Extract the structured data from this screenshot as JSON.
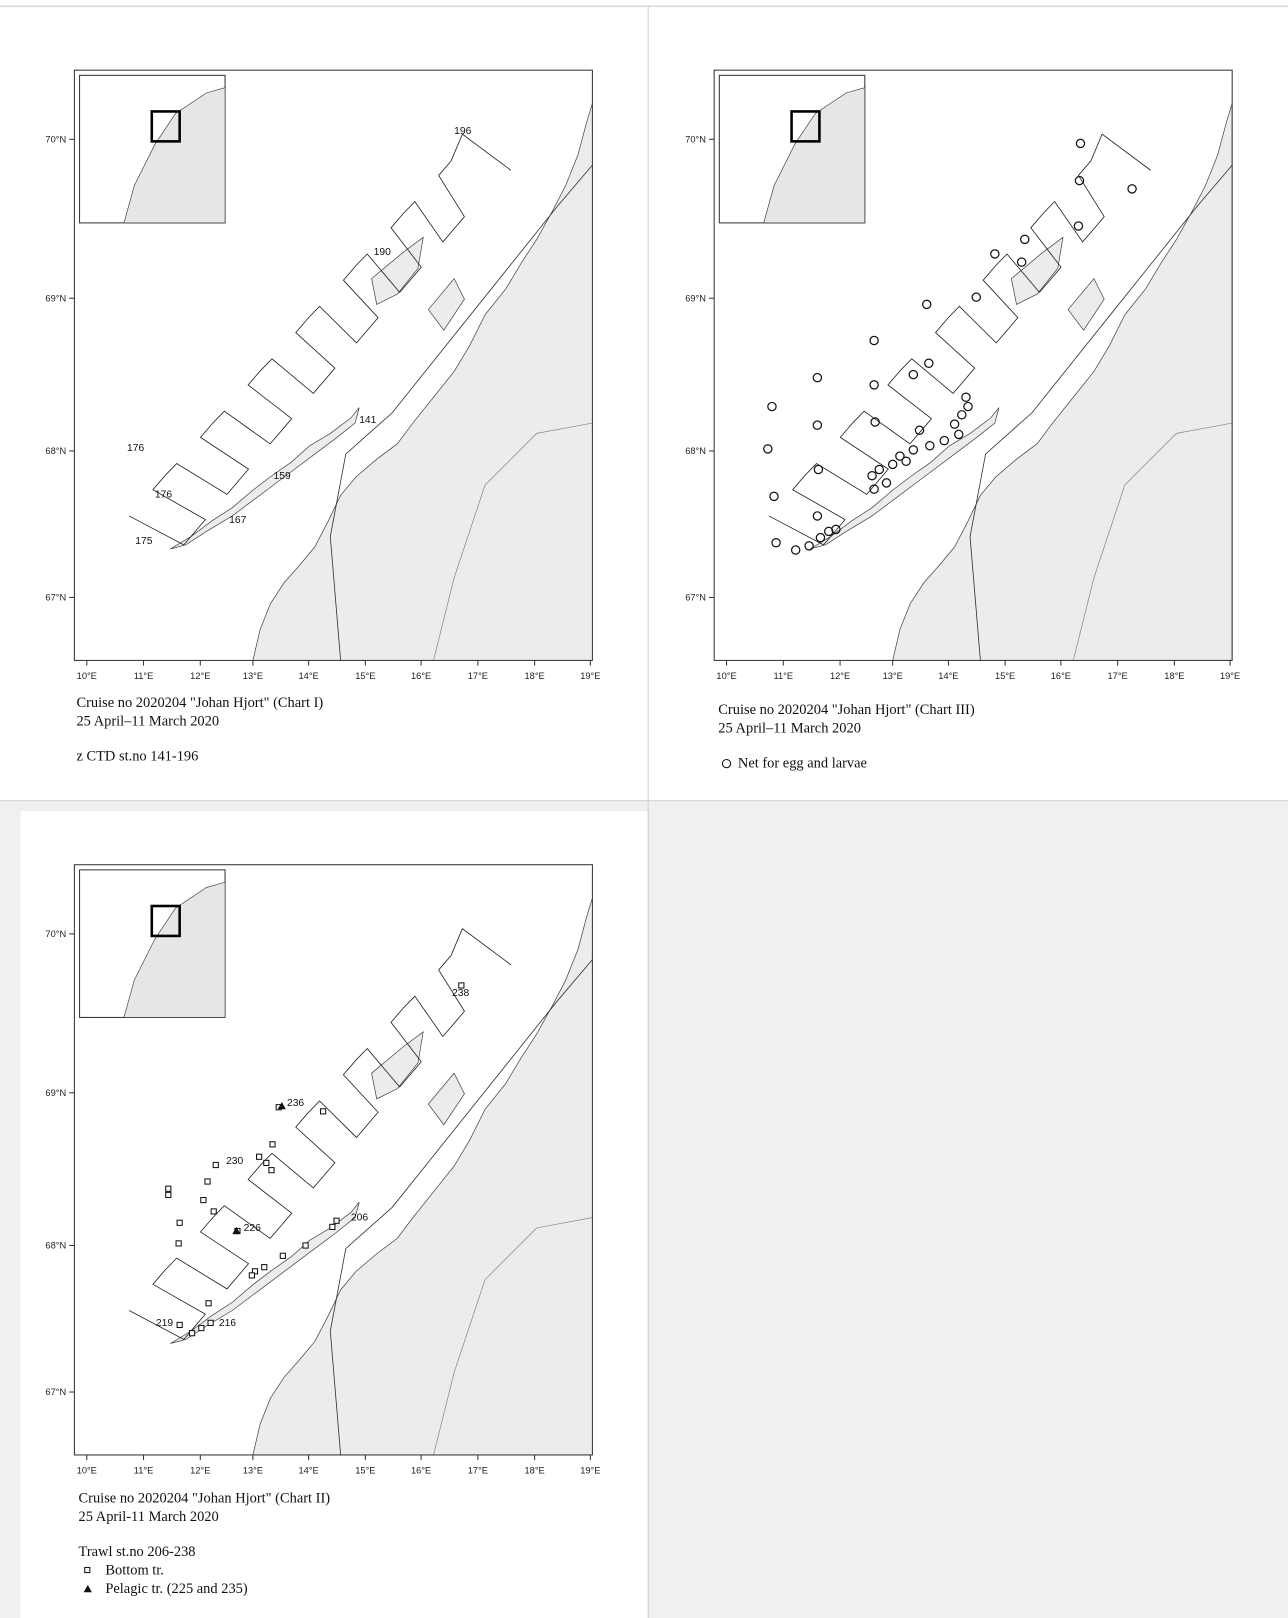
{
  "panels": [
    {
      "lon_ticks": [
        "10°E",
        "11°E",
        "12°E",
        "13°E",
        "14°E",
        "15°E",
        "16°E",
        "17°E",
        "18°E",
        "19°E"
      ],
      "lat_ticks": [
        "70°N",
        "69°N",
        "68°N",
        "67°N"
      ],
      "caption": [
        "Cruise no 2020204  \"Johan Hjort\"  (Chart I)",
        "25 April–11 March 2020"
      ],
      "legend": [
        "z CTD st.no 141-196"
      ],
      "station_labels": [
        "196",
        "190",
        "141",
        "176",
        "176",
        "159",
        "167",
        "175"
      ]
    },
    {
      "lon_ticks": [
        "10°E",
        "11°E",
        "12°E",
        "13°E",
        "14°E",
        "15°E",
        "16°E",
        "17°E",
        "18°E",
        "19°E"
      ],
      "lat_ticks": [
        "70°N",
        "69°N",
        "68°N",
        "67°N"
      ],
      "caption": [
        "Cruise no 2020204  \"Johan Hjort\"  (Chart III)",
        "25 April–11 March 2020"
      ],
      "legend": [
        "Net  for egg and larvae"
      ],
      "station_labels": []
    },
    {
      "lon_ticks": [
        "10°E",
        "11°E",
        "12°E",
        "13°E",
        "14°E",
        "15°E",
        "16°E",
        "17°E",
        "18°E",
        "19°E"
      ],
      "lat_ticks": [
        "70°N",
        "69°N",
        "68°N",
        "67°N"
      ],
      "caption": [
        "Cruise no 2020204  \"Johan Hjort\"  (Chart II)",
        "25 April-11 March 2020"
      ],
      "legend": [
        "Trawl st.no 206-238",
        "Bottom tr.",
        "Pelagic tr. (225 and 235)"
      ],
      "station_labels": [
        "238",
        "236",
        "230",
        "226",
        "206",
        "219",
        "216"
      ]
    }
  ]
}
